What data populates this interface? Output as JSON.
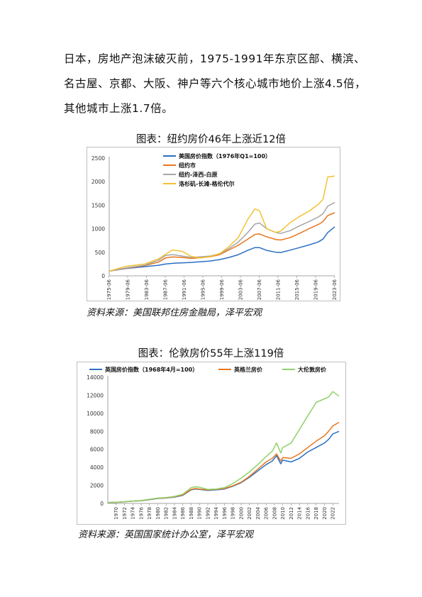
{
  "paragraph": "日本，房地产泡沫破灭前，1975-1991年东京区部、横滨、名古屋、京都、大阪、神户等六个核心城市地价上涨4.5倍，其他城市上涨1.7倍。",
  "chart_data": [
    {
      "type": "line",
      "title": "图表：纽约房价46年上涨近12倍",
      "source": "资料来源：美国联邦住房金融局，泽平宏观",
      "ylim": [
        0,
        2500
      ],
      "yticks": [
        "0",
        "500",
        "1000",
        "1500",
        "2000",
        "2500"
      ],
      "xticks": [
        "1975-06",
        "1979-06",
        "1983-06",
        "1987-06",
        "1991-06",
        "1995-06",
        "1999-06",
        "2003-06",
        "2007-06",
        "2011-06",
        "2015-06",
        "2019-06",
        "2023-06"
      ],
      "x": [
        1975.5,
        1979,
        1983,
        1986,
        1987.5,
        1989,
        1991,
        1993,
        1995,
        1997,
        1999,
        2001,
        2003,
        2005,
        2006.5,
        2007.5,
        2009,
        2011,
        2012,
        2014,
        2016,
        2018,
        2020,
        2021,
        2022,
        2023.5
      ],
      "legend_position": "top-left",
      "series": [
        {
          "name": "美国房价指数（1976年Q1=100）",
          "color": "#2b6fc2",
          "values": [
            100,
            155,
            195,
            225,
            250,
            265,
            275,
            285,
            300,
            315,
            345,
            390,
            450,
            540,
            600,
            598,
            540,
            500,
            495,
            545,
            600,
            655,
            720,
            780,
            920,
            1040
          ]
        },
        {
          "name": "纽约市",
          "color": "#e8761e",
          "values": [
            100,
            160,
            215,
            290,
            380,
            400,
            390,
            370,
            385,
            405,
            450,
            550,
            650,
            780,
            880,
            890,
            830,
            770,
            760,
            810,
            900,
            1000,
            1090,
            1150,
            1280,
            1340
          ]
        },
        {
          "name": "纽约-泽西-白原",
          "color": "#a5a5a5",
          "values": [
            100,
            165,
            225,
            330,
            430,
            450,
            420,
            390,
            405,
            420,
            470,
            580,
            720,
            920,
            1100,
            1120,
            1000,
            920,
            900,
            960,
            1060,
            1150,
            1250,
            1320,
            1480,
            1560
          ]
        },
        {
          "name": "洛杉矶-长滩-格伦代尔",
          "color": "#f2c230",
          "values": [
            100,
            200,
            250,
            360,
            460,
            550,
            520,
            410,
            380,
            410,
            470,
            620,
            820,
            1200,
            1420,
            1380,
            1000,
            920,
            950,
            1130,
            1260,
            1370,
            1520,
            1620,
            2100,
            2120
          ]
        }
      ]
    },
    {
      "type": "line",
      "title": "图表：伦敦房价55年上涨119倍",
      "source": "资料来源：英国国家统计办公室，泽平宏观",
      "ylim": [
        0,
        14000
      ],
      "yticks": [
        "0",
        "2000",
        "4000",
        "6000",
        "8000",
        "10000",
        "12000",
        "14000"
      ],
      "xticks": [
        "1970",
        "1972",
        "1974",
        "1976",
        "1978",
        "1980",
        "1982",
        "1984",
        "1986",
        "1988",
        "1990",
        "1992",
        "1994",
        "1996",
        "1998",
        "2000",
        "2002",
        "2004",
        "2006",
        "2008",
        "2010",
        "2012",
        "2014",
        "2016",
        "2018",
        "2020",
        "2022"
      ],
      "x": [
        1968,
        1970,
        1972,
        1974,
        1976,
        1978,
        1980,
        1982,
        1984,
        1986,
        1988,
        1989,
        1990,
        1992,
        1994,
        1996,
        1998,
        2000,
        2002,
        2004,
        2006,
        2007.5,
        2008.5,
        2009.5,
        2010,
        2012,
        2014,
        2016,
        2018,
        2020,
        2021,
        2022,
        2023.5
      ],
      "legend_position": "top",
      "series": [
        {
          "name": "英国房价指数（1968年4月=100）",
          "color": "#2b6fc2",
          "values": [
            100,
            115,
            180,
            250,
            300,
            420,
            550,
            600,
            700,
            900,
            1500,
            1600,
            1550,
            1450,
            1500,
            1600,
            1900,
            2300,
            2900,
            3600,
            4300,
            4700,
            5300,
            4400,
            4800,
            4600,
            5000,
            5700,
            6200,
            6700,
            7100,
            7700,
            8000
          ]
        },
        {
          "name": "英格兰房价",
          "color": "#e8761e",
          "values": [
            100,
            120,
            190,
            260,
            310,
            440,
            570,
            620,
            730,
            940,
            1550,
            1650,
            1600,
            1500,
            1550,
            1650,
            1950,
            2350,
            3000,
            3800,
            4600,
            5000,
            5500,
            4700,
            5100,
            5000,
            5500,
            6200,
            6900,
            7500,
            8000,
            8600,
            9000
          ]
        },
        {
          "name": "大伦敦房价",
          "color": "#8fd16a",
          "values": [
            100,
            125,
            200,
            270,
            320,
            460,
            600,
            650,
            780,
            1020,
            1750,
            1850,
            1800,
            1550,
            1600,
            1750,
            2200,
            2800,
            3500,
            4300,
            5200,
            5800,
            6700,
            5600,
            6200,
            6700,
            8200,
            9700,
            11200,
            11600,
            11800,
            12400,
            11900
          ]
        }
      ]
    }
  ]
}
